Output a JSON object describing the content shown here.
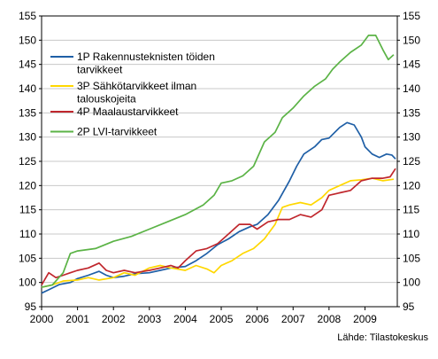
{
  "chart_data": {
    "type": "line",
    "ylim": [
      95,
      155
    ],
    "y_ticks": [
      "95",
      "100",
      "105",
      "110",
      "115",
      "120",
      "125",
      "130",
      "135",
      "140",
      "145",
      "150",
      "155"
    ],
    "xlim": [
      2000,
      2009.9
    ],
    "x_ticks": [
      "2000",
      "2001",
      "2002",
      "2003",
      "2004",
      "2005",
      "2006",
      "2007",
      "2008",
      "2009"
    ],
    "grid": "horizontal",
    "legend_position": "top-left",
    "source": "Lähde: Tilastokeskus",
    "series": [
      {
        "name": "1P Rakennusteknisten töiden tarvikkeet",
        "legend_lines": [
          "1P Rakennusteknisten töiden",
          "tarvikkeet"
        ],
        "color": "#1f5fa6",
        "points": [
          [
            2000,
            97.8
          ],
          [
            2000.2,
            98.5
          ],
          [
            2000.5,
            99.6
          ],
          [
            2000.8,
            100.0
          ],
          [
            2001.0,
            100.8
          ],
          [
            2001.3,
            101.5
          ],
          [
            2001.6,
            102.3
          ],
          [
            2001.8,
            101.5
          ],
          [
            2002.0,
            101.0
          ],
          [
            2002.3,
            101.3
          ],
          [
            2002.6,
            101.8
          ],
          [
            2003.0,
            102.0
          ],
          [
            2003.3,
            102.5
          ],
          [
            2003.6,
            103.0
          ],
          [
            2004.0,
            103.3
          ],
          [
            2004.3,
            104.5
          ],
          [
            2004.6,
            106.0
          ],
          [
            2004.9,
            107.8
          ],
          [
            2005.2,
            109.0
          ],
          [
            2005.5,
            110.5
          ],
          [
            2005.8,
            111.5
          ],
          [
            2006.0,
            112.0
          ],
          [
            2006.3,
            114.0
          ],
          [
            2006.6,
            117.0
          ],
          [
            2006.9,
            121.0
          ],
          [
            2007.1,
            124.0
          ],
          [
            2007.3,
            126.5
          ],
          [
            2007.6,
            128.0
          ],
          [
            2007.8,
            129.5
          ],
          [
            2008.0,
            129.8
          ],
          [
            2008.3,
            132.0
          ],
          [
            2008.5,
            133.0
          ],
          [
            2008.7,
            132.5
          ],
          [
            2008.9,
            130.0
          ],
          [
            2009.0,
            128.0
          ],
          [
            2009.2,
            126.5
          ],
          [
            2009.4,
            125.8
          ],
          [
            2009.6,
            126.5
          ],
          [
            2009.75,
            126.3
          ],
          [
            2009.85,
            125.5
          ]
        ]
      },
      {
        "name": "3P Sähkötarvikkeet ilman talouskojeita",
        "legend_lines": [
          "3P Sähkötarvikkeet ilman",
          "talouskojeita"
        ],
        "color": "#ffd700",
        "points": [
          [
            2000,
            99.0
          ],
          [
            2000.3,
            99.5
          ],
          [
            2000.6,
            100.3
          ],
          [
            2001.0,
            100.5
          ],
          [
            2001.3,
            101.0
          ],
          [
            2001.6,
            100.5
          ],
          [
            2002.0,
            101.0
          ],
          [
            2002.3,
            102.0
          ],
          [
            2002.6,
            101.5
          ],
          [
            2003.0,
            103.0
          ],
          [
            2003.3,
            103.5
          ],
          [
            2003.6,
            103.0
          ],
          [
            2004.0,
            102.5
          ],
          [
            2004.3,
            103.5
          ],
          [
            2004.6,
            102.8
          ],
          [
            2004.8,
            102.0
          ],
          [
            2005.0,
            103.5
          ],
          [
            2005.3,
            104.5
          ],
          [
            2005.6,
            106.0
          ],
          [
            2005.9,
            107.0
          ],
          [
            2006.2,
            109.0
          ],
          [
            2006.5,
            112.0
          ],
          [
            2006.7,
            115.5
          ],
          [
            2006.9,
            116.0
          ],
          [
            2007.2,
            116.5
          ],
          [
            2007.5,
            116.0
          ],
          [
            2007.8,
            117.5
          ],
          [
            2008.0,
            119.0
          ],
          [
            2008.3,
            120.0
          ],
          [
            2008.6,
            121.0
          ],
          [
            2008.9,
            121.2
          ],
          [
            2009.2,
            121.5
          ],
          [
            2009.5,
            121.0
          ],
          [
            2009.8,
            121.3
          ]
        ]
      },
      {
        "name": "4P Maalaustarvikkeet",
        "legend_lines": [
          "4P Maalaustarvikkeet"
        ],
        "color": "#c0272d",
        "points": [
          [
            2000,
            99.5
          ],
          [
            2000.2,
            102.0
          ],
          [
            2000.4,
            101.0
          ],
          [
            2000.6,
            101.5
          ],
          [
            2000.8,
            102.0
          ],
          [
            2001.0,
            102.5
          ],
          [
            2001.3,
            103.0
          ],
          [
            2001.6,
            104.0
          ],
          [
            2001.8,
            102.5
          ],
          [
            2002.0,
            102.0
          ],
          [
            2002.3,
            102.5
          ],
          [
            2002.6,
            102.0
          ],
          [
            2003.0,
            102.5
          ],
          [
            2003.3,
            103.0
          ],
          [
            2003.6,
            103.5
          ],
          [
            2003.8,
            103.0
          ],
          [
            2004.0,
            104.5
          ],
          [
            2004.3,
            106.5
          ],
          [
            2004.6,
            107.0
          ],
          [
            2004.9,
            108.0
          ],
          [
            2005.2,
            110.0
          ],
          [
            2005.5,
            112.0
          ],
          [
            2005.8,
            112.0
          ],
          [
            2006.0,
            111.0
          ],
          [
            2006.3,
            112.5
          ],
          [
            2006.6,
            113.0
          ],
          [
            2006.9,
            113.0
          ],
          [
            2007.2,
            114.0
          ],
          [
            2007.5,
            113.5
          ],
          [
            2007.8,
            115.0
          ],
          [
            2008.0,
            118.0
          ],
          [
            2008.3,
            118.5
          ],
          [
            2008.6,
            119.0
          ],
          [
            2008.9,
            121.0
          ],
          [
            2009.2,
            121.5
          ],
          [
            2009.5,
            121.5
          ],
          [
            2009.7,
            121.8
          ],
          [
            2009.85,
            123.5
          ]
        ]
      },
      {
        "name": "2P LVI-tarvikkeet",
        "legend_lines": [
          "2P LVI-tarvikkeet"
        ],
        "color": "#5bb346",
        "points": [
          [
            2000,
            99.0
          ],
          [
            2000.3,
            99.5
          ],
          [
            2000.6,
            102.0
          ],
          [
            2000.8,
            106.0
          ],
          [
            2001.0,
            106.5
          ],
          [
            2001.5,
            107.0
          ],
          [
            2002.0,
            108.5
          ],
          [
            2002.5,
            109.5
          ],
          [
            2003.0,
            111.0
          ],
          [
            2003.5,
            112.5
          ],
          [
            2004.0,
            114.0
          ],
          [
            2004.5,
            116.0
          ],
          [
            2004.8,
            118.0
          ],
          [
            2005.0,
            120.5
          ],
          [
            2005.3,
            121.0
          ],
          [
            2005.6,
            122.0
          ],
          [
            2005.9,
            124.0
          ],
          [
            2006.2,
            129.0
          ],
          [
            2006.5,
            131.0
          ],
          [
            2006.7,
            134.0
          ],
          [
            2007.0,
            136.0
          ],
          [
            2007.3,
            138.5
          ],
          [
            2007.6,
            140.5
          ],
          [
            2007.9,
            142.0
          ],
          [
            2008.1,
            144.0
          ],
          [
            2008.3,
            145.5
          ],
          [
            2008.6,
            147.5
          ],
          [
            2008.9,
            149.0
          ],
          [
            2009.1,
            151.0
          ],
          [
            2009.3,
            151.0
          ],
          [
            2009.5,
            148.0
          ],
          [
            2009.65,
            146.0
          ],
          [
            2009.8,
            147.0
          ]
        ]
      }
    ]
  }
}
